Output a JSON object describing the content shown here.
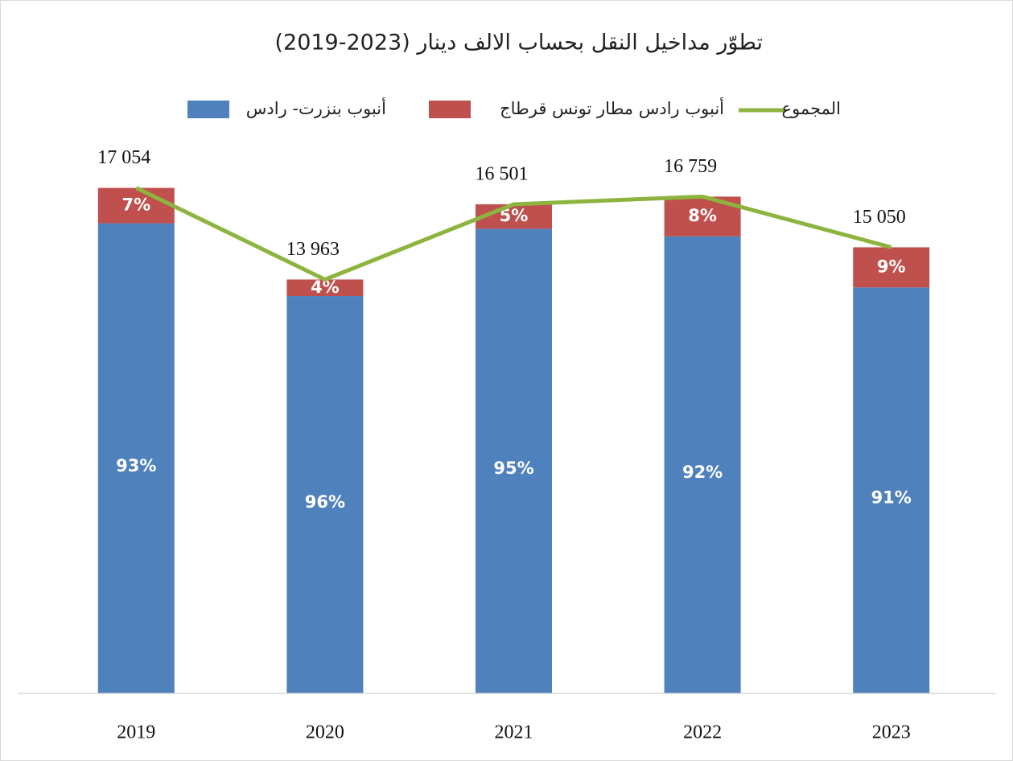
{
  "chart_data": {
    "type": "stacked_bar_line",
    "title": "تطوّر مداخيل النقل بحساب الالف دينار (2023-2019)",
    "categories": [
      "2019",
      "2020",
      "2021",
      "2022",
      "2023"
    ],
    "series": [
      {
        "name": "أنبوب بنزرت- رادس",
        "color": "#4f81bd",
        "values": [
          93,
          96,
          95,
          92,
          91
        ],
        "value_labels": [
          "93%",
          "96%",
          "95%",
          "92%",
          "91%"
        ]
      },
      {
        "name": "أنبوب رادس مطار تونس قرطاج",
        "color": "#c0504d",
        "values": [
          7,
          4,
          5,
          8,
          9
        ],
        "value_labels": [
          "7%",
          "4%",
          "5%",
          "8%",
          "9%"
        ]
      },
      {
        "name": "المجموع",
        "color": "#8db43e",
        "values": [
          17054,
          13963,
          16501,
          16759,
          15050
        ],
        "value_labels": [
          "17 054",
          "13 963",
          "16 501",
          "16 759",
          "15 050"
        ]
      }
    ],
    "ylim": [
      0,
      20000
    ]
  }
}
